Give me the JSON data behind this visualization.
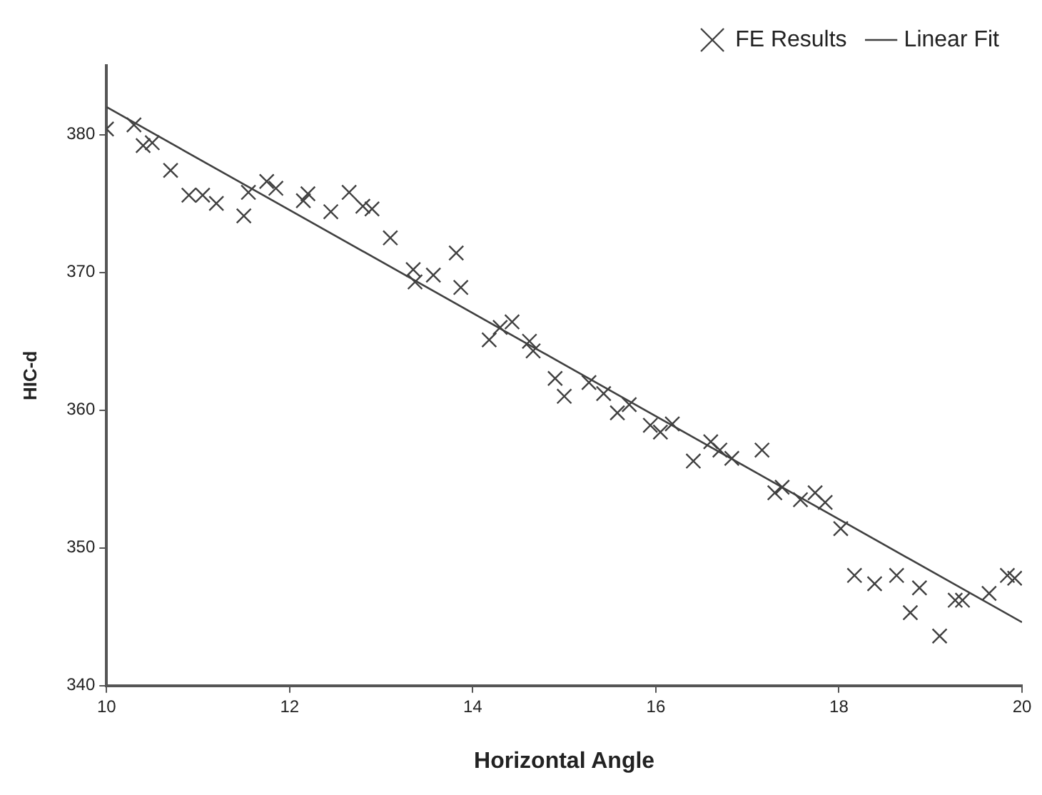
{
  "chart_data": {
    "type": "scatter",
    "xlabel": "Horizontal Angle",
    "ylabel": "HIC-d",
    "xlim": [
      10,
      20
    ],
    "xticks": [
      10,
      12,
      14,
      16,
      18,
      20
    ],
    "ylim": [
      340,
      385
    ],
    "yticks": [
      340,
      350,
      360,
      370,
      380
    ],
    "grid": false,
    "legend": "top right",
    "series": [
      {
        "name": "FE Results",
        "marker": "cross",
        "color": "#404040",
        "x": [
          10.0,
          10.3,
          10.4,
          10.5,
          10.7,
          10.9,
          11.05,
          11.2,
          11.5,
          11.55,
          11.75,
          11.85,
          12.15,
          12.2,
          12.45,
          12.65,
          12.8,
          12.9,
          13.1,
          13.35,
          13.37,
          13.57,
          13.82,
          13.87,
          14.18,
          14.3,
          14.43,
          14.62,
          14.66,
          14.9,
          15.0,
          15.27,
          15.43,
          15.58,
          15.71,
          15.94,
          16.05,
          16.18,
          16.41,
          16.6,
          16.7,
          16.83,
          17.16,
          17.3,
          17.38,
          17.58,
          17.74,
          17.85,
          18.02,
          18.17,
          18.39,
          18.63,
          18.78,
          18.88,
          19.1,
          19.27,
          19.35,
          19.64,
          19.84,
          19.92
        ],
        "values": [
          380.4,
          380.7,
          379.2,
          379.4,
          377.4,
          375.6,
          375.6,
          375.0,
          374.1,
          375.8,
          376.6,
          376.1,
          375.2,
          375.7,
          374.4,
          375.8,
          374.8,
          374.6,
          372.5,
          370.2,
          369.3,
          369.8,
          371.4,
          368.9,
          365.1,
          366.0,
          366.4,
          365.0,
          364.3,
          362.3,
          361.0,
          362.0,
          361.2,
          359.8,
          360.4,
          358.9,
          358.4,
          359.0,
          356.3,
          357.7,
          357.1,
          356.5,
          357.1,
          354.0,
          354.4,
          353.5,
          354.0,
          353.3,
          351.4,
          348.0,
          347.4,
          348.0,
          345.3,
          347.1,
          343.6,
          346.2,
          346.2,
          346.7,
          348.0,
          347.8
        ]
      },
      {
        "name": "Linear Fit",
        "type": "line",
        "marker": "none",
        "color": "#404040",
        "x": [
          10,
          20
        ],
        "values": [
          382.0,
          344.6
        ]
      }
    ]
  }
}
